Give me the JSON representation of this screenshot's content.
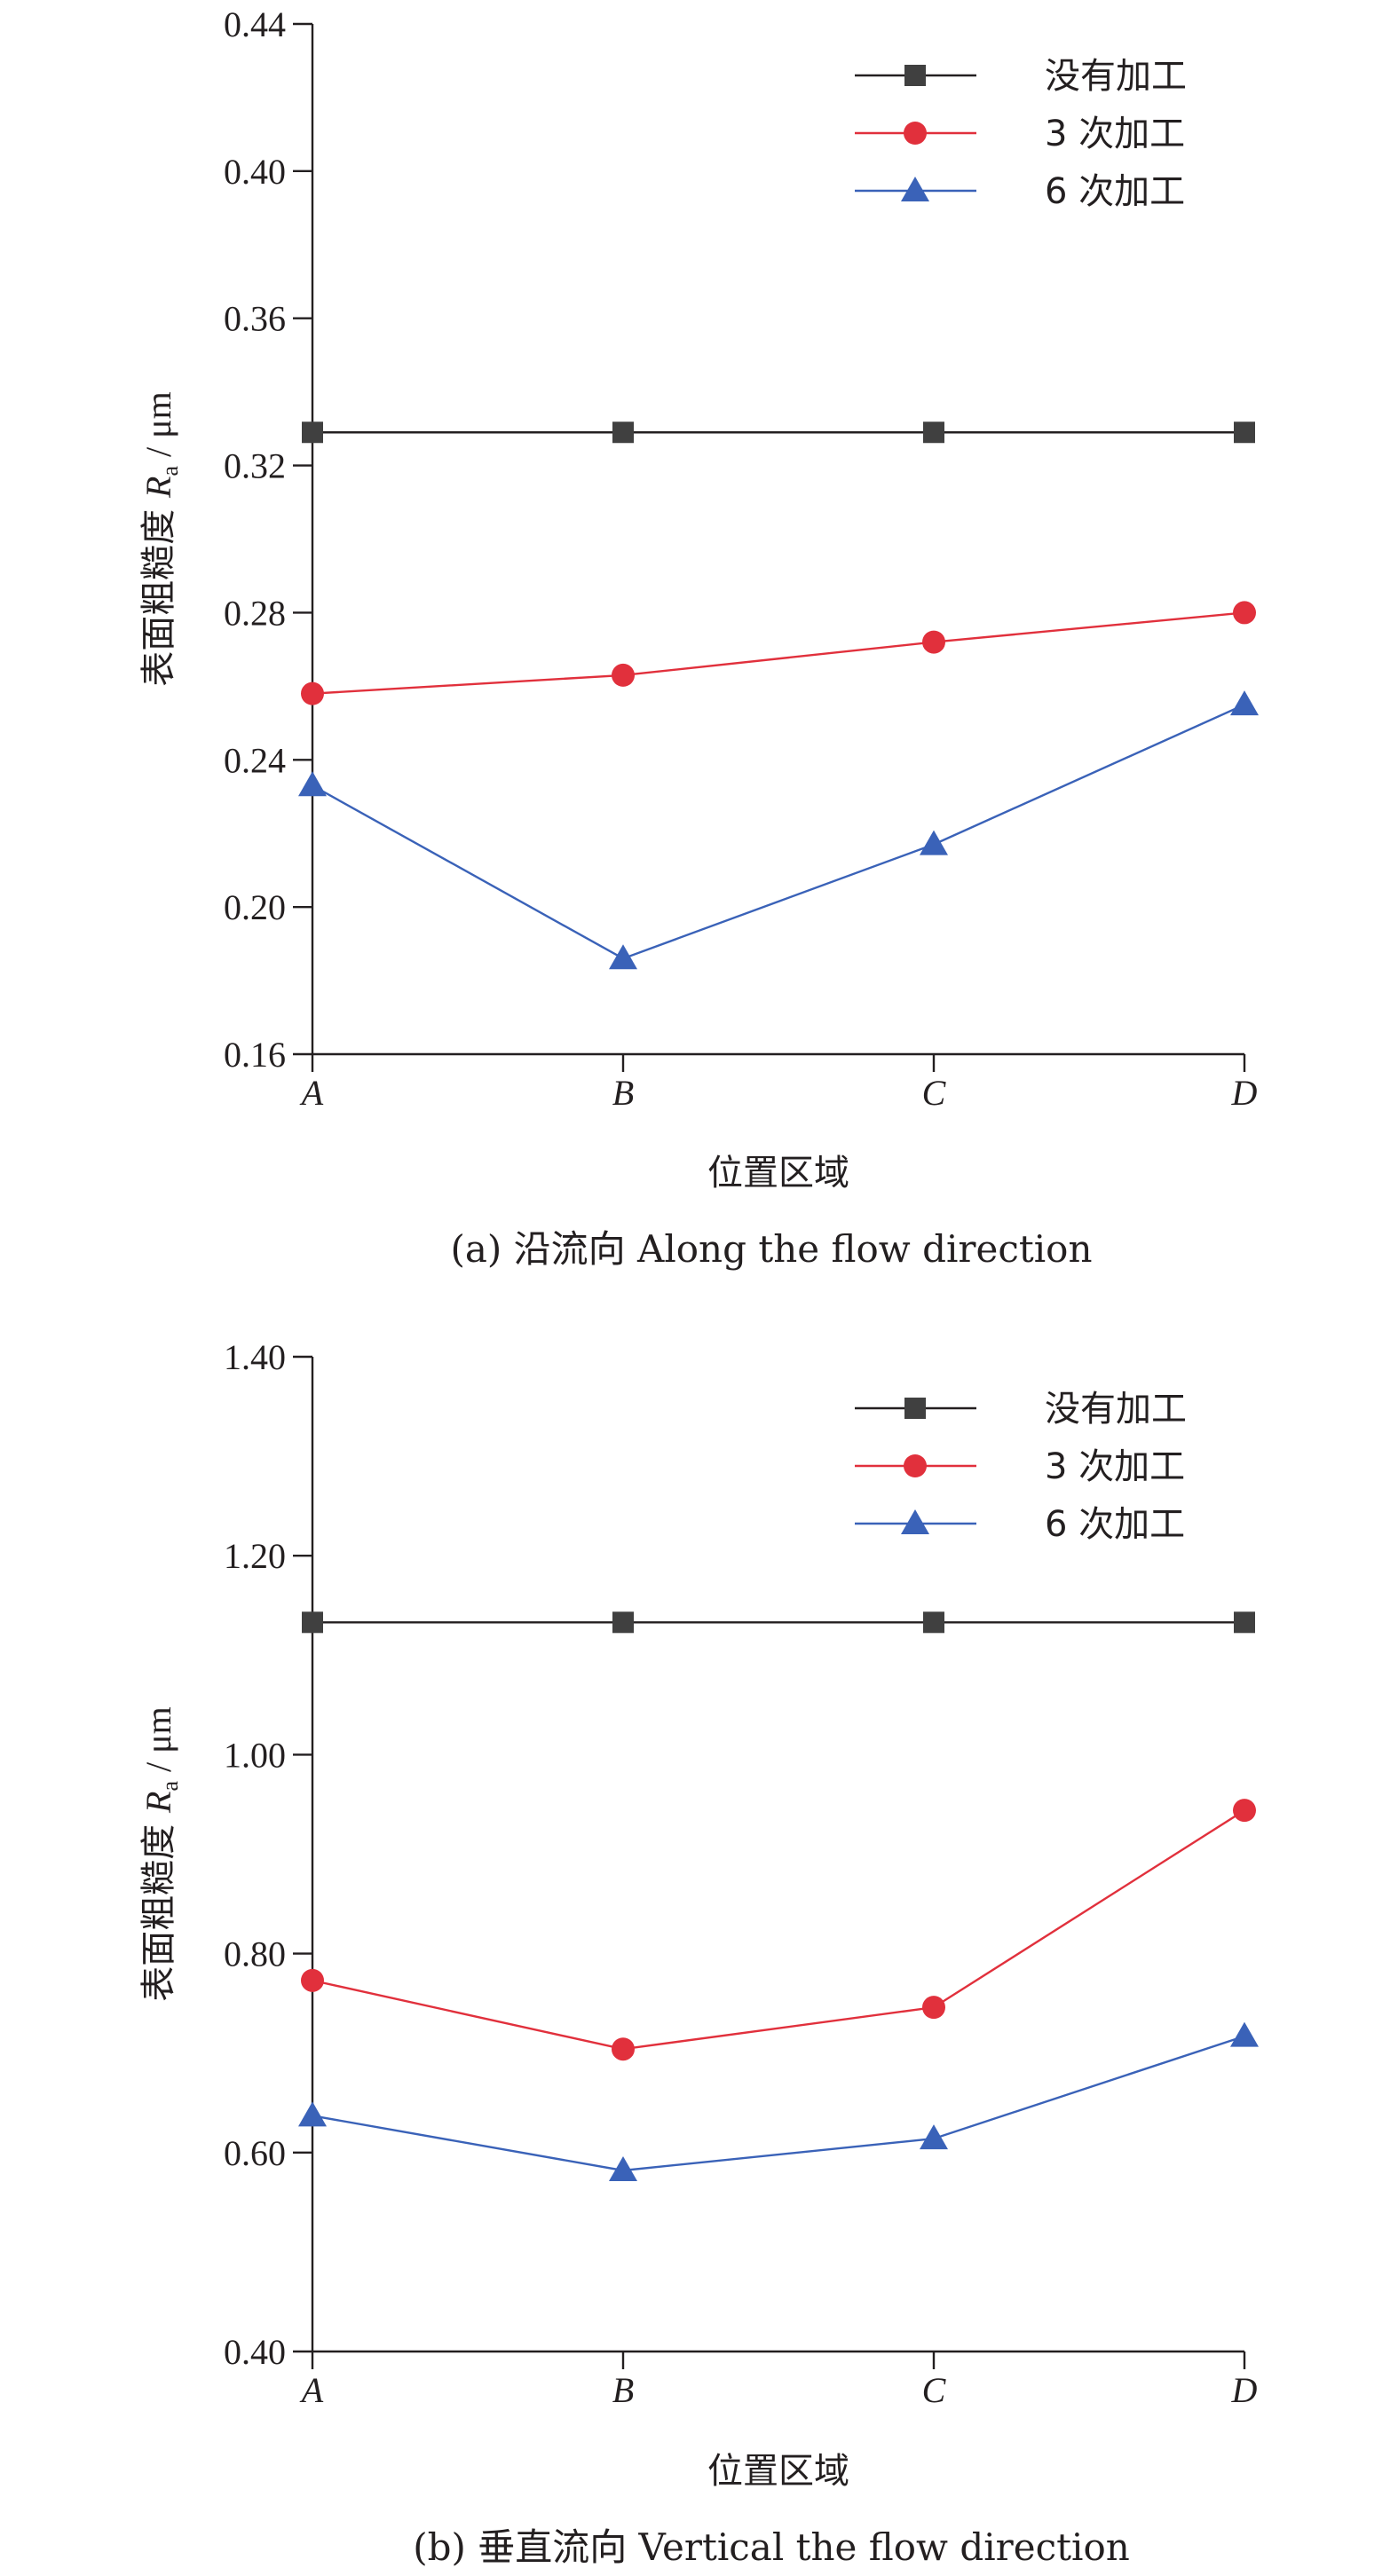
{
  "chart_data": [
    {
      "type": "line",
      "caption": "(a) 沿流向 Along the flow direction",
      "xlabel": "位置区域",
      "ylabel_prefix": "表面粗糙度 ",
      "ylabel_symbol": "R",
      "ylabel_subscript": "a",
      "ylabel_unit": " / μm",
      "categories": [
        "A",
        "B",
        "C",
        "D"
      ],
      "ylim": [
        0.16,
        0.44
      ],
      "yticks": [
        "0.16",
        "0.20",
        "0.24",
        "0.28",
        "0.32",
        "0.36",
        "0.40",
        "0.44"
      ],
      "legend_position": "top-right",
      "grid": false,
      "series": [
        {
          "name": "没有加工",
          "marker": "square",
          "color": "#231f20",
          "marker_color": "#404040",
          "values": [
            0.329,
            0.329,
            0.329,
            0.329
          ]
        },
        {
          "name": "3 次加工",
          "marker": "circle",
          "color": "#e1303c",
          "marker_color": "#e1303c",
          "values": [
            0.258,
            0.263,
            0.272,
            0.28
          ]
        },
        {
          "name": "6 次加工",
          "marker": "triangle",
          "color": "#3a62b8",
          "marker_color": "#3a62b8",
          "values": [
            0.233,
            0.186,
            0.217,
            0.255
          ]
        }
      ]
    },
    {
      "type": "line",
      "caption": "(b) 垂直流向 Vertical the flow direction",
      "xlabel": "位置区域",
      "ylabel_prefix": "表面粗糙度 ",
      "ylabel_symbol": "R",
      "ylabel_subscript": "a",
      "ylabel_unit": " / μm",
      "categories": [
        "A",
        "B",
        "C",
        "D"
      ],
      "ylim": [
        0.4,
        1.4
      ],
      "yticks": [
        "0.40",
        "0.60",
        "0.80",
        "1.00",
        "1.20",
        "1.40"
      ],
      "legend_position": "top-right",
      "grid": false,
      "series": [
        {
          "name": "没有加工",
          "marker": "square",
          "color": "#231f20",
          "marker_color": "#404040",
          "values": [
            1.133,
            1.133,
            1.133,
            1.133
          ]
        },
        {
          "name": "3 次加工",
          "marker": "circle",
          "color": "#e1303c",
          "marker_color": "#e1303c",
          "values": [
            0.773,
            0.704,
            0.746,
            0.944
          ]
        },
        {
          "name": "6 次加工",
          "marker": "triangle",
          "color": "#3a62b8",
          "marker_color": "#3a62b8",
          "values": [
            0.637,
            0.582,
            0.614,
            0.717
          ]
        }
      ]
    }
  ]
}
